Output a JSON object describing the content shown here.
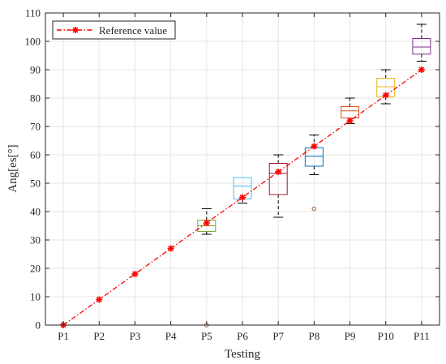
{
  "chart_data": {
    "type": "box",
    "title": "",
    "xlabel": "Testing",
    "ylabel": "Ang[es[°]",
    "ylim": [
      0,
      110
    ],
    "yticks": [
      0,
      10,
      20,
      30,
      40,
      50,
      60,
      70,
      80,
      90,
      100,
      110
    ],
    "grid": true,
    "legend_position": "top-left",
    "categories": [
      "P1",
      "P2",
      "P3",
      "P4",
      "P5",
      "P6",
      "P7",
      "P8",
      "P9",
      "P10",
      "P11"
    ],
    "boxes": [
      {
        "category": "P1",
        "whisker_low": 0,
        "q1": 0,
        "median": 0,
        "q3": 0,
        "whisker_high": 0,
        "outliers": [],
        "color": "#7e2f8e"
      },
      {
        "category": "P2",
        "whisker_low": 0,
        "q1": 0,
        "median": 0,
        "q3": 0,
        "whisker_high": 0,
        "outliers": [],
        "color": "#d95319"
      },
      {
        "category": "P3",
        "whisker_low": 0,
        "q1": 0,
        "median": 0,
        "q3": 0,
        "whisker_high": 0,
        "outliers": [],
        "color": "#edb120"
      },
      {
        "category": "P4",
        "whisker_low": 0,
        "q1": 0,
        "median": 0,
        "q3": 0,
        "whisker_high": 0,
        "outliers": [],
        "color": "#7e2f8e"
      },
      {
        "category": "P5",
        "whisker_low": 32,
        "q1": 33,
        "median": 35,
        "q3": 37,
        "whisker_high": 41,
        "outliers": [
          0
        ],
        "color": "#77ac30"
      },
      {
        "category": "P6",
        "whisker_low": 43,
        "q1": 44.5,
        "median": 49,
        "q3": 52,
        "whisker_high": 52,
        "outliers": [],
        "color": "#4dbeee"
      },
      {
        "category": "P7",
        "whisker_low": 38,
        "q1": 46,
        "median": 53.5,
        "q3": 57,
        "whisker_high": 60,
        "outliers": [],
        "color": "#a2142f"
      },
      {
        "category": "P8",
        "whisker_low": 53,
        "q1": 56,
        "median": 59.5,
        "q3": 62.5,
        "whisker_high": 67,
        "outliers": [
          41
        ],
        "color": "#0072bd"
      },
      {
        "category": "P9",
        "whisker_low": 71,
        "q1": 73,
        "median": 75.5,
        "q3": 77,
        "whisker_high": 80,
        "outliers": [],
        "color": "#d95319"
      },
      {
        "category": "P10",
        "whisker_low": 78,
        "q1": 80.5,
        "median": 84,
        "q3": 87,
        "whisker_high": 90,
        "outliers": [],
        "color": "#edb120"
      },
      {
        "category": "P11",
        "whisker_low": 93,
        "q1": 95.5,
        "median": 98,
        "q3": 101,
        "whisker_high": 106,
        "outliers": [],
        "color": "#7e2f8e"
      }
    ],
    "series": [
      {
        "name": "Reference value",
        "style": "dash-dot",
        "marker": "asterisk",
        "color": "#ff0000",
        "values": [
          0,
          9,
          18,
          27,
          36,
          45,
          54,
          63,
          72,
          81,
          90
        ]
      }
    ]
  }
}
